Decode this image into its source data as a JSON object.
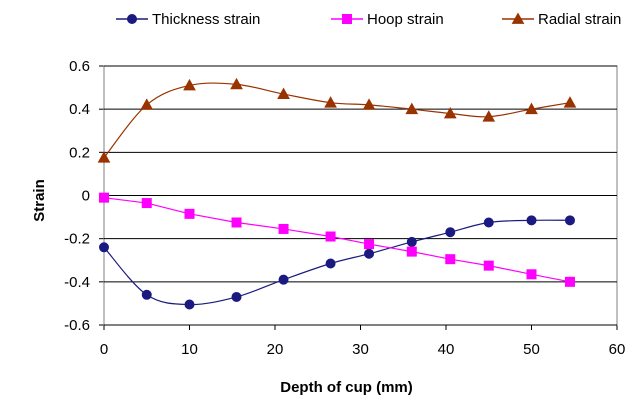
{
  "chart_data": {
    "type": "line",
    "title": "",
    "xlabel": "Depth of cup (mm)",
    "ylabel": "Strain",
    "xlim": [
      0,
      60
    ],
    "ylim": [
      -0.6,
      0.6
    ],
    "x_ticks": [
      0,
      10,
      20,
      30,
      40,
      50,
      60
    ],
    "x_tick_labels": [
      "0",
      "10",
      "20",
      "30",
      "40",
      "50",
      "60"
    ],
    "y_ticks": [
      -0.6,
      -0.4,
      -0.2,
      0,
      0.2,
      0.4,
      0.6
    ],
    "y_tick_labels": [
      "-0.6",
      "-0.4",
      "-0.2",
      "0",
      "0.2",
      "0.4",
      "0.6"
    ],
    "grid": "horizontal",
    "legend_position": "top",
    "series": [
      {
        "name": "Thickness strain",
        "color": "#1a1a80",
        "marker": "circle",
        "smooth": true,
        "x": [
          0,
          5,
          10,
          15.5,
          21,
          26.5,
          31,
          36,
          40.5,
          45,
          50,
          54.5
        ],
        "y": [
          -0.24,
          -0.46,
          -0.505,
          -0.47,
          -0.39,
          -0.315,
          -0.27,
          -0.215,
          -0.17,
          -0.125,
          -0.115,
          -0.115
        ]
      },
      {
        "name": "Hoop strain",
        "color": "#ff00ff",
        "marker": "square",
        "smooth": false,
        "x": [
          0,
          5,
          10,
          15.5,
          21,
          26.5,
          31,
          36,
          40.5,
          45,
          50,
          54.5
        ],
        "y": [
          -0.01,
          -0.035,
          -0.085,
          -0.125,
          -0.155,
          -0.19,
          -0.225,
          -0.26,
          -0.295,
          -0.325,
          -0.365,
          -0.4
        ]
      },
      {
        "name": "Radial strain",
        "color": "#993300",
        "marker": "triangle",
        "smooth": true,
        "x": [
          0,
          5,
          10,
          15.5,
          21,
          26.5,
          31,
          36,
          40.5,
          45,
          50,
          54.5
        ],
        "y": [
          0.175,
          0.42,
          0.51,
          0.515,
          0.47,
          0.43,
          0.42,
          0.4,
          0.38,
          0.365,
          0.4,
          0.43
        ]
      }
    ]
  }
}
